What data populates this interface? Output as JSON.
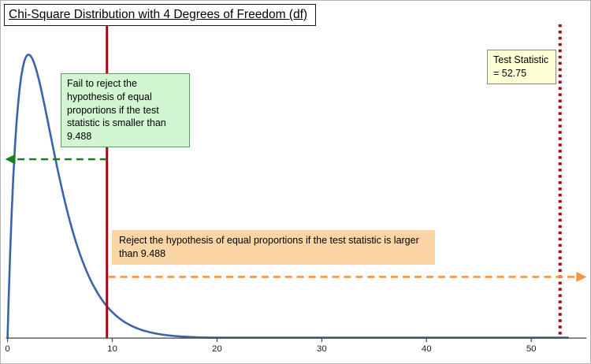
{
  "title": "Chi-Square Distribution with 4 Degrees of Freedom (df)",
  "annotations": {
    "fail_box": "Fail to reject the hypothesis of equal proportions if the test statistic is smaller than 9.488",
    "reject_box": "Reject the hypothesis of equal proportions if the test statistic is larger than 9.488",
    "test_stat_box": "Test Statistic = 52.75"
  },
  "colors": {
    "curve": "#3a62ad",
    "critical_line": "#9e0b0f",
    "test_stat_line": "#9e0b0f",
    "fail_arrow": "#1e7d1e",
    "reject_arrow": "#fb923c",
    "fail_box_bg": "#d2f5d2",
    "reject_box_bg": "#fbd6a4",
    "test_stat_box_bg": "#ffffd6",
    "axis": "#444444"
  },
  "chart_data": {
    "type": "line",
    "title": "Chi-Square Distribution with 4 Degrees of Freedom (df)",
    "distribution": "chi-square pdf",
    "degrees_of_freedom": 4,
    "critical_value": 9.488,
    "test_statistic": 52.75,
    "xlabel": "",
    "ylabel": "",
    "x_ticks": [
      0,
      10,
      20,
      30,
      40,
      50
    ],
    "xlim": [
      0,
      53.5
    ],
    "ylim": [
      0,
      0.22
    ],
    "grid": false,
    "legend": "none",
    "series": [
      {
        "name": "chi-square pdf (df = 4)",
        "x": [
          0,
          1,
          2,
          3,
          4,
          5,
          7.5,
          9.488,
          12,
          15,
          20,
          30,
          40,
          50
        ],
        "y": [
          0,
          0.1516,
          0.1839,
          0.1673,
          0.1353,
          0.1026,
          0.0441,
          0.0207,
          0.0074,
          0.0021,
          0.0002,
          2.3e-06,
          2e-08,
          2e-10
        ]
      }
    ],
    "annotations": {
      "fail_region_arrow": "dashed green arrow pointing left from critical value",
      "reject_region_arrow": "dashed orange arrow pointing right from critical value"
    }
  }
}
